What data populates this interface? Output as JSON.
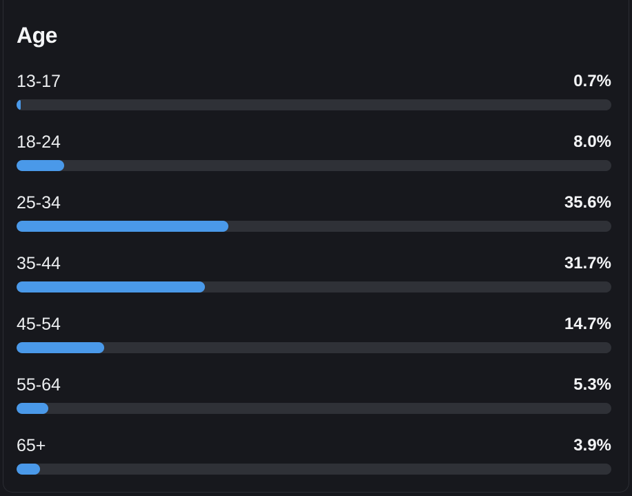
{
  "card": {
    "title": "Age"
  },
  "colors": {
    "bar_fill": "#4a99e9",
    "bar_track": "#2f3137",
    "background": "#17181d"
  },
  "chart_data": {
    "type": "bar",
    "orientation": "horizontal",
    "title": "Age",
    "categories": [
      "13-17",
      "18-24",
      "25-34",
      "35-44",
      "45-54",
      "55-64",
      "65+"
    ],
    "values": [
      0.7,
      8.0,
      35.6,
      31.7,
      14.7,
      5.3,
      3.9
    ],
    "value_labels": [
      "0.7%",
      "8.0%",
      "35.6%",
      "31.7%",
      "14.7%",
      "5.3%",
      "3.9%"
    ],
    "xlim": [
      0,
      100
    ],
    "grid": false,
    "legend": "none"
  }
}
